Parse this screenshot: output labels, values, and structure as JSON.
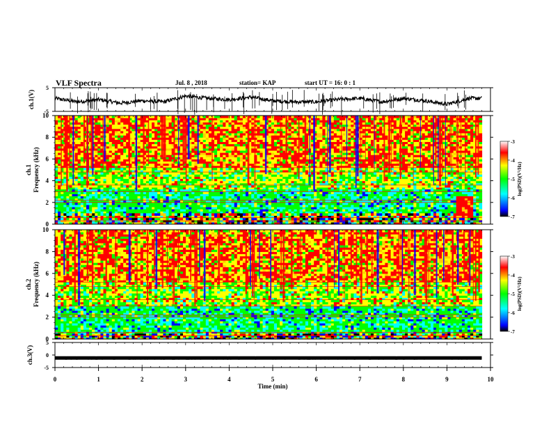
{
  "header": {
    "title": "VLF Spectra",
    "date": "Jul. 8 , 2018",
    "station": "station= KAP",
    "start": "start UT =  16: 0 : 1"
  },
  "colors": {
    "high": "#ff0000",
    "mid_high": "#ffcc00",
    "mid": "#ffff00",
    "mid_low": "#00ff00",
    "low": "#00ffff",
    "lowest": "#0000ff",
    "floor": "#000000"
  },
  "chart_data": [
    {
      "type": "line",
      "panel": "ch.1 waveform",
      "ylabel": "ch.1(V)",
      "ylim": [
        -5,
        5
      ],
      "yticks": [
        "5",
        "-5"
      ],
      "x": [
        0,
        0.5,
        1,
        1.5,
        2,
        2.5,
        3,
        3.5,
        4,
        4.5,
        5,
        5.5,
        6,
        6.5,
        7,
        7.5,
        8,
        8.5,
        9,
        9.5,
        9.8
      ],
      "values": [
        0.5,
        -1,
        0,
        -1.5,
        -0.5,
        -1,
        1.5,
        0.5,
        0,
        1,
        -0.5,
        -1,
        -1,
        0,
        0.5,
        -1,
        0.5,
        -0.5,
        -2,
        0.5,
        0.5
      ],
      "xlim": [
        0,
        10
      ]
    },
    {
      "type": "heatmap",
      "panel": "ch.1 spectrogram",
      "ylabel": "ch.1 Frequency (kHz)",
      "ylim": [
        0,
        10
      ],
      "yticks": [
        "0",
        "2",
        "4",
        "6",
        "8",
        "10"
      ],
      "xlim": [
        0,
        9.8
      ],
      "colorbar": {
        "label": "log(PSD)(V²/Hz)",
        "range": [
          -7,
          -3
        ],
        "ticks": [
          "-3",
          "-4",
          "-5",
          "-6",
          "-7"
        ]
      },
      "bands": [
        {
          "fmin": 5.2,
          "fmax": 10,
          "level": "mixed red-yellow"
        },
        {
          "fmin": 3.2,
          "fmax": 5.2,
          "level": "green-yellow"
        },
        {
          "fmin": 1.0,
          "fmax": 3.2,
          "level": "green-cyan"
        },
        {
          "fmin": 0,
          "fmax": 1.0,
          "level": "mixed"
        }
      ],
      "feature": {
        "label": "broadband burst",
        "tmin": 9.15,
        "tmax": 9.6,
        "fmin": 0.5,
        "fmax": 2.7,
        "level": "red"
      }
    },
    {
      "type": "heatmap",
      "panel": "ch.2 spectrogram",
      "ylabel": "ch.2 Frequency (kHz)",
      "ylim": [
        0,
        10
      ],
      "yticks": [
        "0",
        "2",
        "4",
        "6",
        "8",
        "10"
      ],
      "xlim": [
        0,
        9.8
      ],
      "colorbar": {
        "label": "log(PSD)(V²/Hz)",
        "range": [
          -7,
          -3
        ],
        "ticks": [
          "-3",
          "-4",
          "-5",
          "-6",
          "-7"
        ]
      },
      "bands": [
        {
          "fmin": 5.2,
          "fmax": 10,
          "level": "mixed red-yellow"
        },
        {
          "fmin": 3.0,
          "fmax": 5.2,
          "level": "green-yellow"
        },
        {
          "fmin": 0.5,
          "fmax": 3.0,
          "level": "green-cyan"
        },
        {
          "fmin": 0,
          "fmax": 0.5,
          "level": "mixed"
        }
      ]
    },
    {
      "type": "line",
      "panel": "ch.3 waveform",
      "ylabel": "ch.3(V)",
      "ylim": [
        -5,
        5
      ],
      "yticks": [
        "5",
        "0",
        "-5"
      ],
      "x": [
        0,
        9.8
      ],
      "values": [
        -1.2,
        -1.2
      ],
      "xlim": [
        0,
        10
      ],
      "xlabel": "Time (min)",
      "xticks": [
        "0",
        "1",
        "2",
        "3",
        "4",
        "5",
        "6",
        "7",
        "8",
        "9",
        "10"
      ]
    }
  ]
}
